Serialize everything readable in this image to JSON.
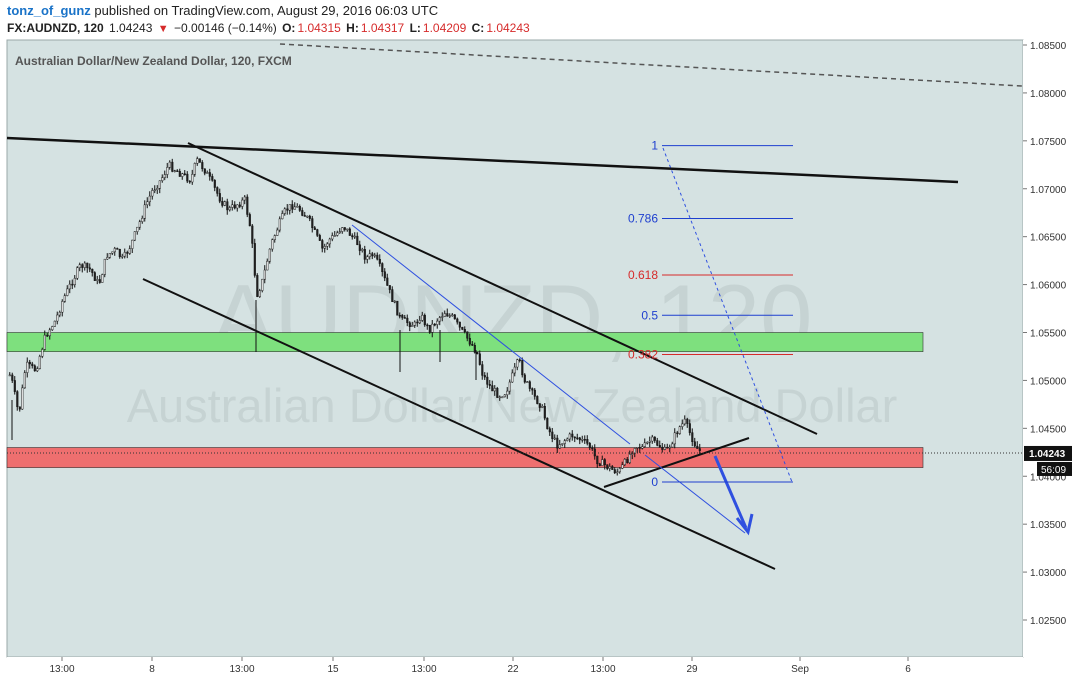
{
  "header": {
    "author": "tonz_of_gunz",
    "published": " published on TradingView.com, August 29, 2016 06:03 UTC",
    "symbol": "FX:AUDNZD, 120",
    "last": "1.04243",
    "change_arrow": "▼",
    "change": "−0.00146 (−0.14%)",
    "open_label": "O:",
    "open": "1.04315",
    "high_label": "H:",
    "high": "1.04317",
    "low_label": "L:",
    "low": "1.04209",
    "close_label": "C:",
    "close": "1.04243"
  },
  "chart_data": {
    "type": "candlestick",
    "title": "Australian Dollar/New Zealand Dollar, 120, FXCM",
    "watermark_symbol": "AUDNZD, 120",
    "watermark_name": "Australian Dollar/New Zealand Dollar",
    "y_ticks": [
      "1.08500",
      "1.08000",
      "1.07500",
      "1.07000",
      "1.06500",
      "1.06000",
      "1.05500",
      "1.05000",
      "1.04500",
      "1.04000",
      "1.03500",
      "1.03000",
      "1.02500"
    ],
    "ylim": [
      1.0205,
      1.0855
    ],
    "x_ticks": [
      "13:00",
      "8",
      "13:00",
      "15",
      "13:00",
      "22",
      "13:00",
      "29",
      "Sep",
      "6"
    ],
    "last_price": "1.04243",
    "countdown": "56:09",
    "zones": [
      {
        "name": "support-resistance-zone",
        "low": 1.053,
        "high": 1.055,
        "color": "#7ee07e"
      },
      {
        "name": "supply-zone",
        "low": 1.0409,
        "high": 1.043,
        "color": "#ee6f6f"
      }
    ],
    "fib_levels": [
      {
        "label": "1",
        "value": 1.0745,
        "color": "#1e3fcf"
      },
      {
        "label": "0.786",
        "value": 1.0669,
        "color": "#1e3fcf"
      },
      {
        "label": "0.618",
        "value": 1.061,
        "color": "#d62b2b"
      },
      {
        "label": "0.5",
        "value": 1.0568,
        "color": "#1e3fcf"
      },
      {
        "label": "0.382",
        "value": 1.0527,
        "color": "#d62b2b"
      },
      {
        "label": "0",
        "value": 1.0394,
        "color": "#1e3fcf"
      }
    ],
    "colors": {
      "background": "#d5e2e2",
      "up": "#ffffff",
      "down": "#222222",
      "trendline": "#111111",
      "projection": "#2f50e0"
    }
  }
}
